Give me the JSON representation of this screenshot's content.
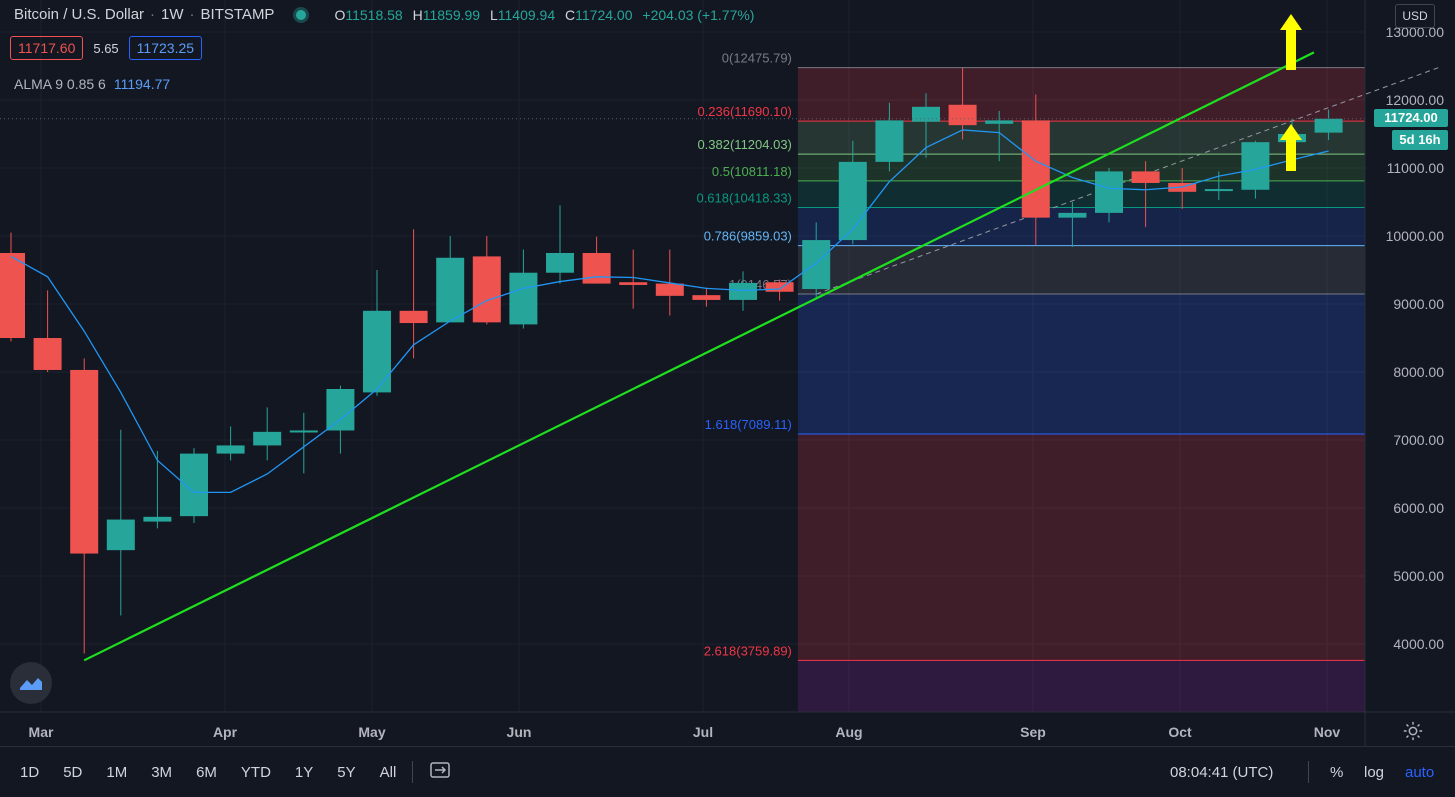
{
  "header": {
    "symbol": "Bitcoin / U.S. Dollar",
    "interval": "1W",
    "exchange": "BITSTAMP",
    "ohlc": {
      "o_label": "O",
      "o": "11518.58",
      "h_label": "H",
      "h": "11859.99",
      "l_label": "L",
      "l": "11409.94",
      "c_label": "C",
      "c": "11724.00",
      "change": "+204.03 (+1.77%)"
    },
    "bid": "11717.60",
    "spread": "5.65",
    "ask": "11723.25",
    "indicator_name": "ALMA 9 0.85 6",
    "indicator_value": "11194.77",
    "currency_button": "USD"
  },
  "price_tag": "11724.00",
  "countdown_tag": "5d 16h",
  "bottombar": {
    "timeframes": [
      "1D",
      "5D",
      "1M",
      "3M",
      "6M",
      "YTD",
      "1Y",
      "5Y",
      "All"
    ],
    "clock": "08:04:41 (UTC)",
    "percent": "%",
    "log": "log",
    "auto": "auto"
  },
  "colors": {
    "up": "#26a69a",
    "down": "#ef5350",
    "alma": "#2196f3",
    "trendline": "#1ee01e",
    "arrow": "#ffff00"
  },
  "chart_data": {
    "type": "candlestick",
    "title": "",
    "y_axis_ticks": [
      4000,
      5000,
      6000,
      7000,
      8000,
      9000,
      10000,
      11000,
      12000,
      13000
    ],
    "x_axis_labels": [
      "Mar",
      "Apr",
      "May",
      "Jun",
      "Jul",
      "Aug",
      "Sep",
      "Oct",
      "Nov"
    ],
    "candles": [
      {
        "o": 9750,
        "h": 10050,
        "l": 8450,
        "c": 8500
      },
      {
        "o": 8500,
        "h": 9200,
        "l": 8000,
        "c": 8030
      },
      {
        "o": 8030,
        "h": 8200,
        "l": 3860,
        "c": 5330
      },
      {
        "o": 5380,
        "h": 7150,
        "l": 4420,
        "c": 5830
      },
      {
        "o": 5800,
        "h": 6840,
        "l": 5700,
        "c": 5870
      },
      {
        "o": 5880,
        "h": 6880,
        "l": 5780,
        "c": 6800
      },
      {
        "o": 6800,
        "h": 7200,
        "l": 6700,
        "c": 6920
      },
      {
        "o": 6920,
        "h": 7480,
        "l": 6700,
        "c": 7120
      },
      {
        "o": 7120,
        "h": 7400,
        "l": 6510,
        "c": 7140
      },
      {
        "o": 7140,
        "h": 7800,
        "l": 6800,
        "c": 7750
      },
      {
        "o": 7700,
        "h": 9500,
        "l": 7650,
        "c": 8900
      },
      {
        "o": 8900,
        "h": 10100,
        "l": 8200,
        "c": 8720
      },
      {
        "o": 8730,
        "h": 10000,
        "l": 8800,
        "c": 9680
      },
      {
        "o": 9700,
        "h": 10000,
        "l": 8700,
        "c": 8730
      },
      {
        "o": 8700,
        "h": 9800,
        "l": 8640,
        "c": 9460
      },
      {
        "o": 9460,
        "h": 10450,
        "l": 9300,
        "c": 9750
      },
      {
        "o": 9750,
        "h": 9990,
        "l": 9300,
        "c": 9300
      },
      {
        "o": 9320,
        "h": 9800,
        "l": 8930,
        "c": 9280
      },
      {
        "o": 9300,
        "h": 9800,
        "l": 8830,
        "c": 9120
      },
      {
        "o": 9130,
        "h": 9240,
        "l": 8960,
        "c": 9060
      },
      {
        "o": 9060,
        "h": 9480,
        "l": 8900,
        "c": 9310
      },
      {
        "o": 9320,
        "h": 9360,
        "l": 9050,
        "c": 9180
      },
      {
        "o": 9220,
        "h": 10200,
        "l": 9100,
        "c": 9940
      },
      {
        "o": 9940,
        "h": 11400,
        "l": 9880,
        "c": 11090
      },
      {
        "o": 11090,
        "h": 11960,
        "l": 10950,
        "c": 11700
      },
      {
        "o": 11680,
        "h": 12100,
        "l": 11150,
        "c": 11900
      },
      {
        "o": 11930,
        "h": 12475,
        "l": 11420,
        "c": 11630
      },
      {
        "o": 11650,
        "h": 11840,
        "l": 11100,
        "c": 11700
      },
      {
        "o": 11700,
        "h": 12080,
        "l": 9870,
        "c": 10270
      },
      {
        "o": 10270,
        "h": 10500,
        "l": 9840,
        "c": 10340
      },
      {
        "o": 10340,
        "h": 11000,
        "l": 10200,
        "c": 10950
      },
      {
        "o": 10950,
        "h": 11100,
        "l": 10130,
        "c": 10780
      },
      {
        "o": 10780,
        "h": 11000,
        "l": 10400,
        "c": 10650
      },
      {
        "o": 10670,
        "h": 10950,
        "l": 10530,
        "c": 10690
      },
      {
        "o": 10680,
        "h": 11400,
        "l": 10550,
        "c": 11380
      },
      {
        "o": 11380,
        "h": 11720,
        "l": 11200,
        "c": 11500
      },
      {
        "o": 11520,
        "h": 11860,
        "l": 11410,
        "c": 11724
      }
    ],
    "alma": [
      9700,
      9400,
      8600,
      7700,
      6700,
      6230,
      6230,
      6500,
      6900,
      7300,
      7750,
      8400,
      8750,
      9050,
      9230,
      9330,
      9400,
      9390,
      9310,
      9230,
      9200,
      9220,
      9600,
      10100,
      10800,
      11300,
      11560,
      11520,
      11100,
      10860,
      10700,
      10680,
      10720,
      10880,
      10980,
      11120,
      11250
    ],
    "fib": [
      {
        "label": "0(12475.79)",
        "value": 12475.79,
        "color": "#787b86"
      },
      {
        "label": "0.236(11690.10)",
        "value": 11690.1,
        "color": "#f23645"
      },
      {
        "label": "0.382(11204.03)",
        "value": 11204.03,
        "color": "#81c784"
      },
      {
        "label": "0.5(10811.18)",
        "value": 10811.18,
        "color": "#4caf50"
      },
      {
        "label": "0.618(10418.33)",
        "value": 10418.33,
        "color": "#089981"
      },
      {
        "label": "0.786(9859.03)",
        "value": 9859.03,
        "color": "#64b5f6"
      },
      {
        "label": "1(9146.57)",
        "value": 9146.57,
        "color": "#787b86"
      },
      {
        "label": "1.618(7089.11)",
        "value": 7089.11,
        "color": "#2962ff"
      },
      {
        "label": "2.618(3759.89)",
        "value": 3759.89,
        "color": "#f23645"
      }
    ],
    "trendline": {
      "from": {
        "candle": 2,
        "price": 3760
      },
      "to": {
        "candle": 35.6,
        "price": 12700
      }
    },
    "dashed_line": {
      "from": {
        "candle": 22,
        "price": 9146.57
      },
      "to": {
        "candle": 39,
        "price": 12475.79
      }
    },
    "fib_start_candle": 21.5,
    "fib_end_candle": 39.5
  }
}
